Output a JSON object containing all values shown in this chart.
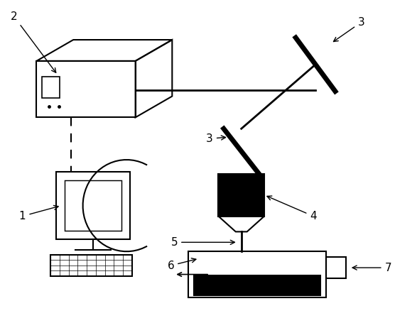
{
  "bg_color": "#ffffff",
  "line_color": "#000000",
  "lw": 1.5,
  "label_fontsize": 12,
  "fig_w": 5.87,
  "fig_h": 4.55,
  "dpi": 100
}
